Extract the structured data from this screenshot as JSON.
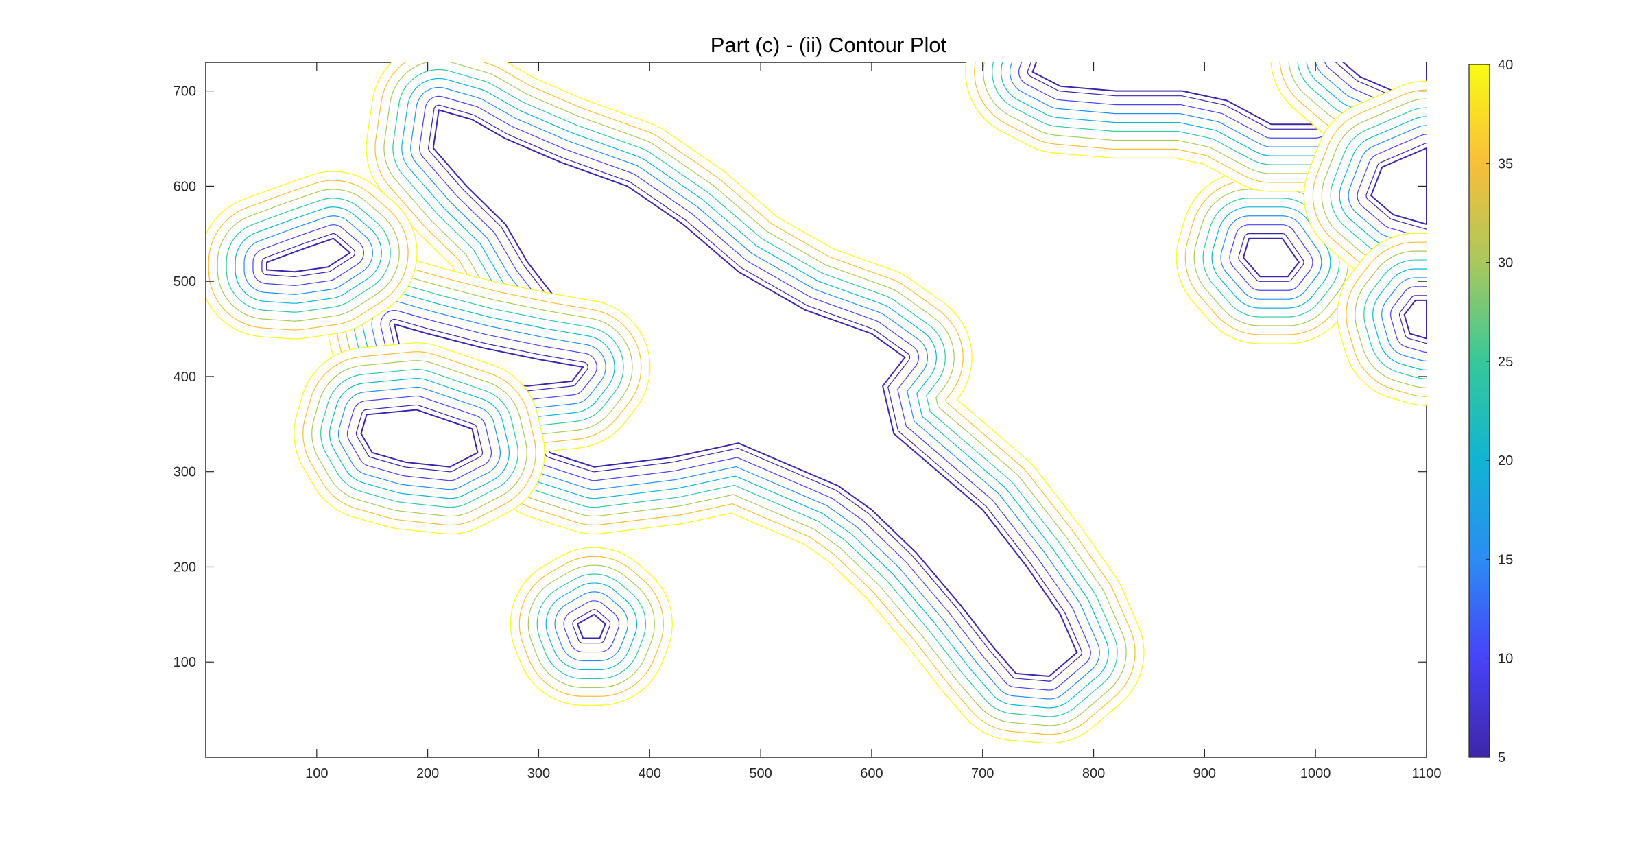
{
  "chart_data": {
    "type": "contour",
    "title": "Part (c) - (ii) Contour Plot",
    "xlabel": "",
    "ylabel": "",
    "xlim": [
      0,
      1100
    ],
    "ylim": [
      0,
      730
    ],
    "x_ticks": [
      100,
      200,
      300,
      400,
      500,
      600,
      700,
      800,
      900,
      1000,
      1100
    ],
    "y_ticks": [
      100,
      200,
      300,
      400,
      500,
      600,
      700
    ],
    "grid": false,
    "colorbar": {
      "position": "right",
      "range": [
        5,
        40
      ],
      "ticks": [
        5,
        10,
        15,
        20,
        25,
        30,
        35,
        40
      ],
      "colormap": "parula",
      "colors": [
        "#3e26a8",
        "#4743f8",
        "#2c8cf4",
        "#10b4d3",
        "#37c899",
        "#aac85d",
        "#f9be3a",
        "#f9fb15"
      ]
    },
    "contour_levels": [
      5,
      10,
      15,
      20,
      25,
      30,
      35,
      40
    ],
    "regions": [
      {
        "name": "main-body",
        "outline": [
          [
            210,
            680
          ],
          [
            240,
            670
          ],
          [
            270,
            650
          ],
          [
            320,
            625
          ],
          [
            380,
            600
          ],
          [
            430,
            560
          ],
          [
            480,
            510
          ],
          [
            540,
            470
          ],
          [
            600,
            445
          ],
          [
            630,
            420
          ],
          [
            610,
            390
          ],
          [
            620,
            340
          ],
          [
            660,
            300
          ],
          [
            700,
            260
          ],
          [
            740,
            200
          ],
          [
            770,
            150
          ],
          [
            785,
            110
          ],
          [
            760,
            85
          ],
          [
            730,
            88
          ],
          [
            710,
            115
          ],
          [
            680,
            160
          ],
          [
            640,
            215
          ],
          [
            600,
            260
          ],
          [
            570,
            285
          ],
          [
            530,
            305
          ],
          [
            480,
            330
          ],
          [
            420,
            315
          ],
          [
            350,
            305
          ],
          [
            310,
            320
          ],
          [
            300,
            355
          ],
          [
            340,
            385
          ],
          [
            380,
            380
          ],
          [
            400,
            405
          ],
          [
            360,
            430
          ],
          [
            320,
            475
          ],
          [
            290,
            520
          ],
          [
            270,
            560
          ],
          [
            235,
            600
          ],
          [
            205,
            640
          ]
        ]
      },
      {
        "name": "left-arm",
        "outline": [
          [
            170,
            455
          ],
          [
            200,
            445
          ],
          [
            250,
            430
          ],
          [
            300,
            418
          ],
          [
            340,
            410
          ],
          [
            330,
            395
          ],
          [
            290,
            390
          ],
          [
            250,
            395
          ],
          [
            210,
            410
          ],
          [
            175,
            430
          ]
        ]
      },
      {
        "name": "left-blob-middle",
        "outline": [
          [
            145,
            360
          ],
          [
            190,
            365
          ],
          [
            240,
            345
          ],
          [
            245,
            320
          ],
          [
            220,
            305
          ],
          [
            180,
            310
          ],
          [
            150,
            320
          ],
          [
            140,
            340
          ]
        ]
      },
      {
        "name": "upper-left-blob",
        "outline": [
          [
            55,
            520
          ],
          [
            90,
            535
          ],
          [
            115,
            545
          ],
          [
            130,
            530
          ],
          [
            110,
            515
          ],
          [
            80,
            510
          ],
          [
            55,
            512
          ]
        ]
      },
      {
        "name": "bottom-blob",
        "outline": [
          [
            350,
            150
          ],
          [
            360,
            140
          ],
          [
            355,
            125
          ],
          [
            340,
            125
          ],
          [
            335,
            140
          ]
        ]
      },
      {
        "name": "right-small-blob",
        "outline": [
          [
            940,
            545
          ],
          [
            970,
            545
          ],
          [
            985,
            520
          ],
          [
            975,
            505
          ],
          [
            950,
            505
          ],
          [
            935,
            525
          ]
        ]
      },
      {
        "name": "top-right-strip",
        "outline": [
          [
            750,
            735
          ],
          [
            830,
            735
          ],
          [
            900,
            735
          ],
          [
            955,
            735
          ],
          [
            985,
            710
          ],
          [
            1020,
            700
          ],
          [
            1040,
            680
          ],
          [
            1000,
            665
          ],
          [
            960,
            665
          ],
          [
            920,
            690
          ],
          [
            880,
            700
          ],
          [
            820,
            700
          ],
          [
            770,
            705
          ],
          [
            745,
            720
          ]
        ]
      },
      {
        "name": "top-right-corner",
        "outline": [
          [
            1020,
            735
          ],
          [
            1100,
            735
          ],
          [
            1100,
            705
          ],
          [
            1070,
            700
          ],
          [
            1040,
            715
          ]
        ]
      },
      {
        "name": "right-edge-upper",
        "outline": [
          [
            1100,
            640
          ],
          [
            1100,
            560
          ],
          [
            1070,
            570
          ],
          [
            1050,
            590
          ],
          [
            1060,
            620
          ]
        ]
      },
      {
        "name": "right-edge-lower",
        "outline": [
          [
            1100,
            480
          ],
          [
            1100,
            440
          ],
          [
            1085,
            445
          ],
          [
            1080,
            465
          ],
          [
            1090,
            480
          ]
        ]
      }
    ]
  }
}
